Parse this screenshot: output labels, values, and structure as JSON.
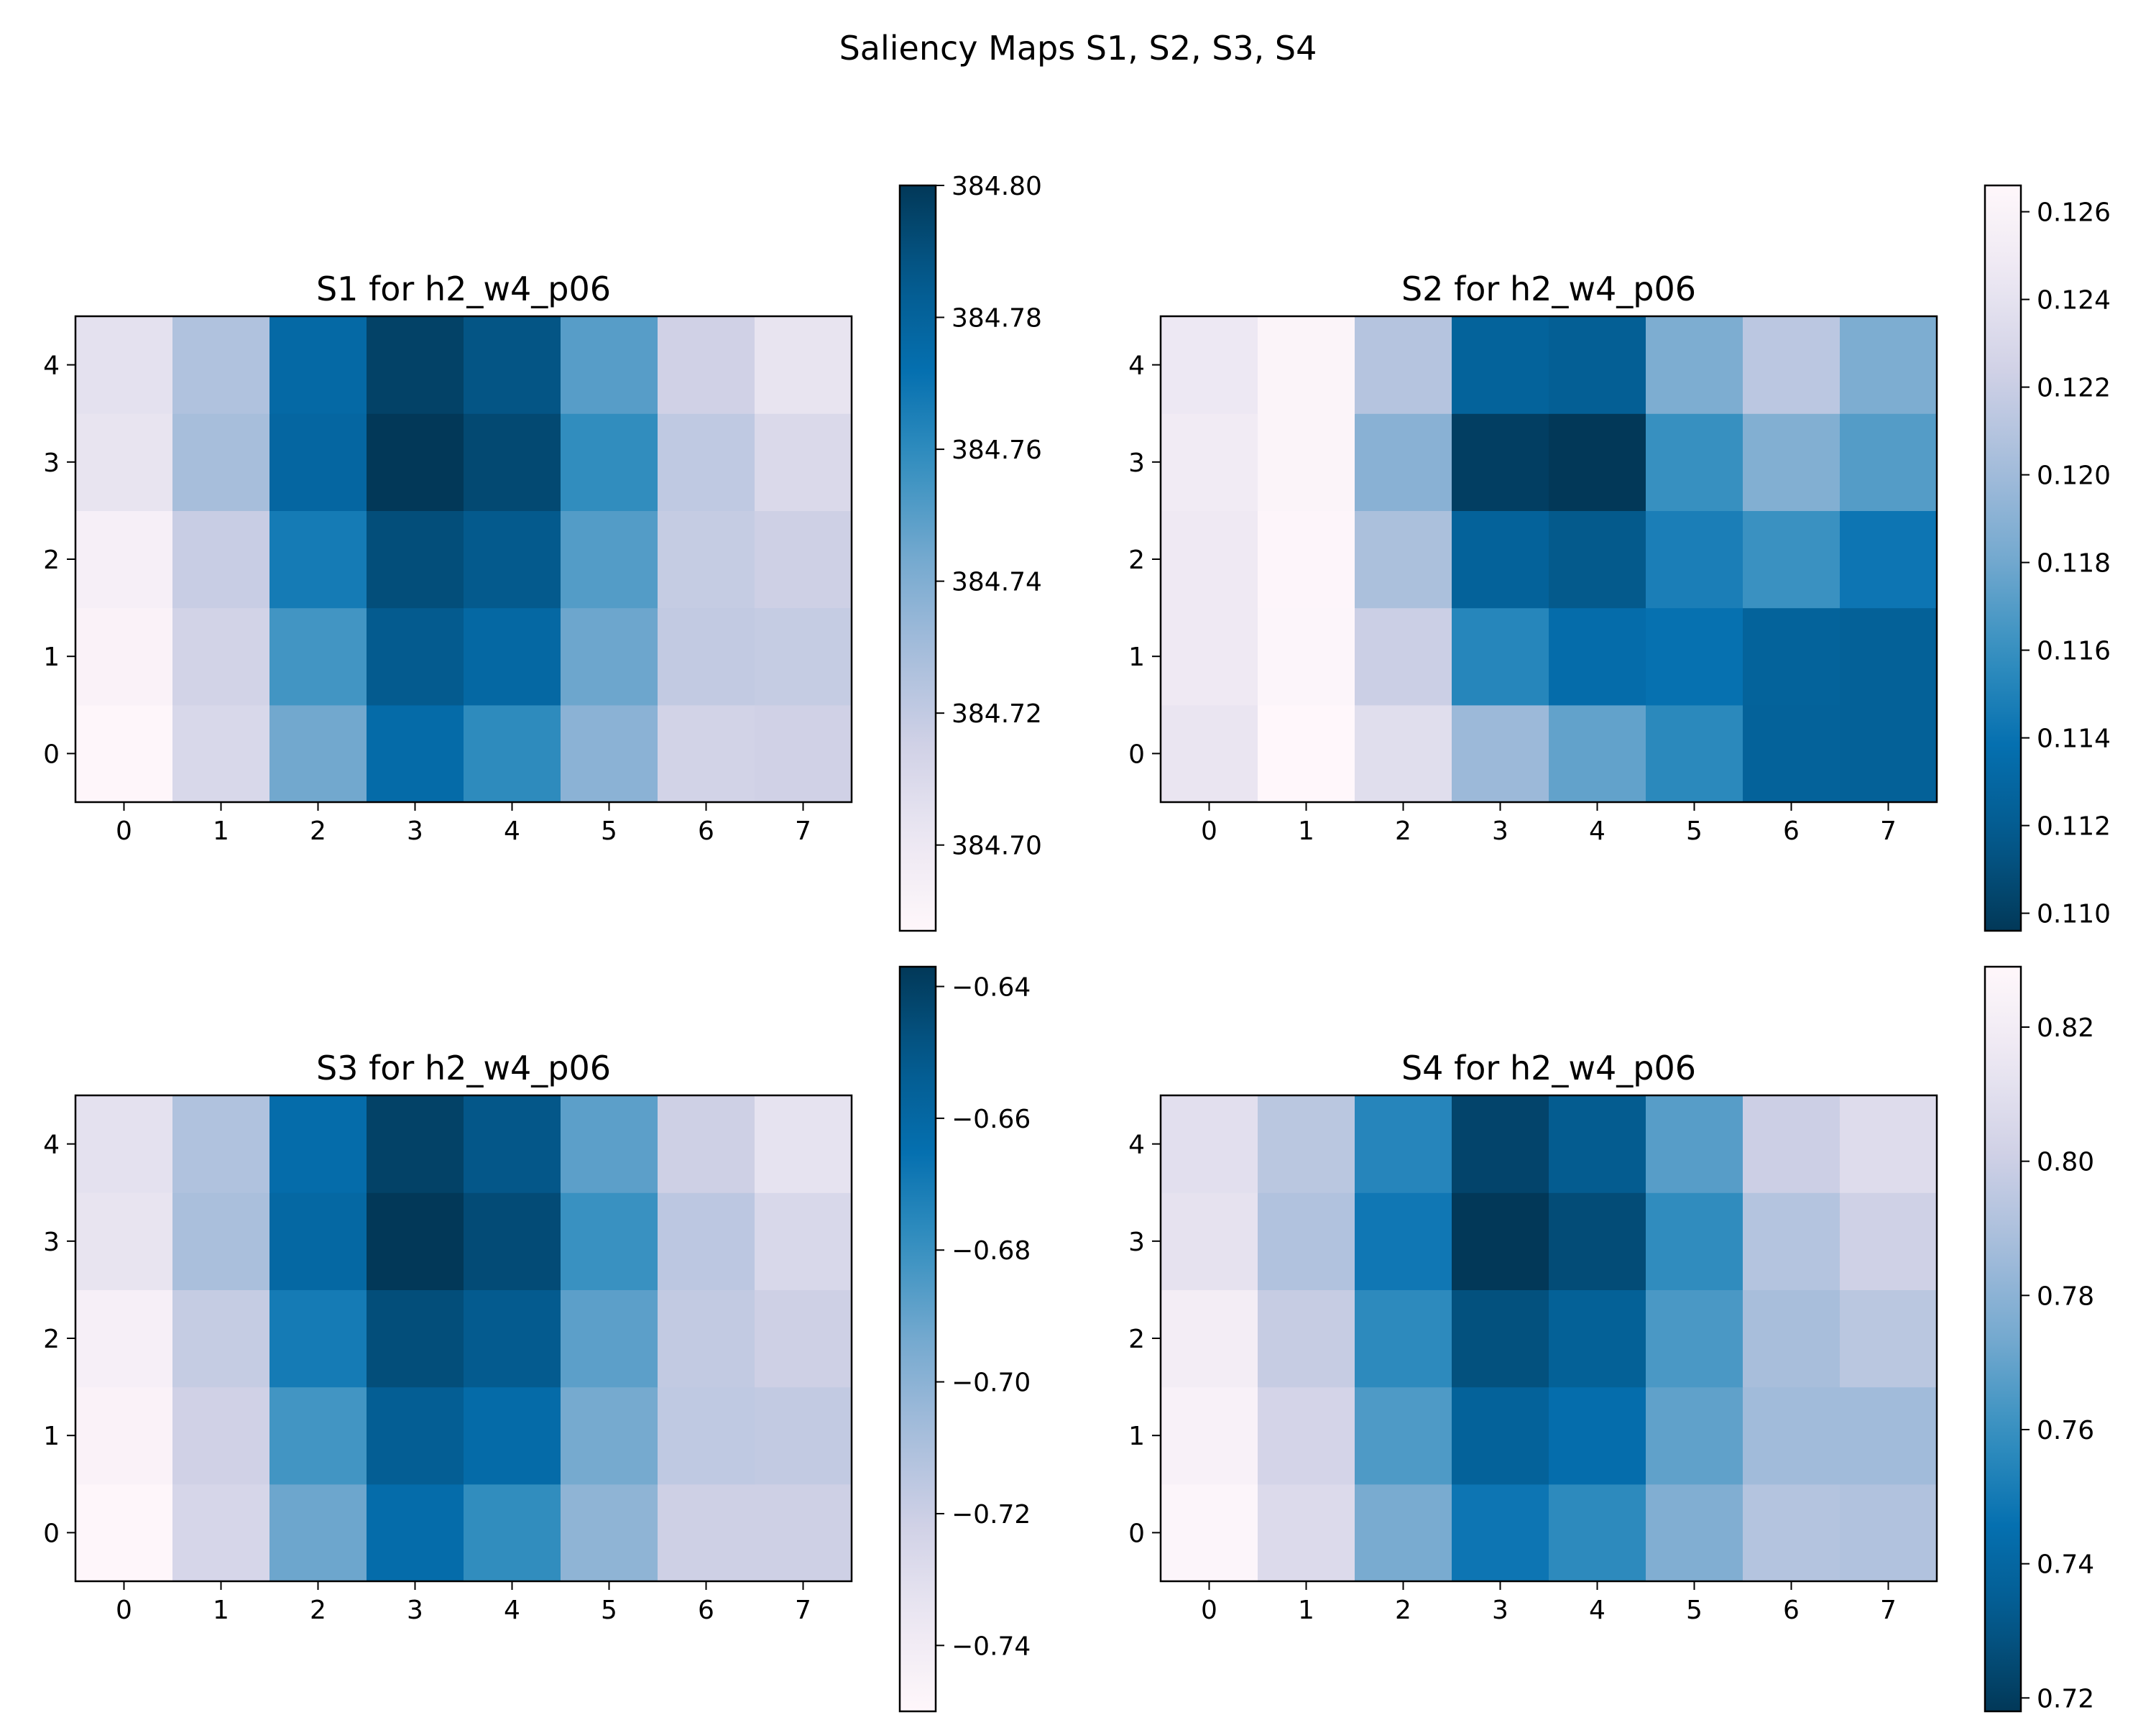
{
  "figure": {
    "suptitle": "Saliency Maps S1, S2, S3, S4"
  },
  "colormap": [
    "#fff7fb",
    "#ece7f2",
    "#d0d1e6",
    "#a6bddb",
    "#74a9cf",
    "#3690c0",
    "#0570b0",
    "#045a8d",
    "#023858"
  ],
  "chart_data": [
    {
      "type": "heatmap",
      "title": "S1 for h2_w4_p06",
      "x_ticks": [
        "0",
        "1",
        "2",
        "3",
        "4",
        "5",
        "6",
        "7"
      ],
      "y_ticks": [
        "0",
        "1",
        "2",
        "3",
        "4"
      ],
      "colorbar": {
        "vmin": 384.687,
        "vmax": 384.8,
        "reversed": false,
        "ticks": [
          "384.70",
          "384.72",
          "384.74",
          "384.76",
          "384.78",
          "384.80"
        ]
      },
      "grid": [
        [
          384.688,
          384.711,
          384.744,
          384.775,
          384.76,
          384.737,
          384.714,
          384.715
        ],
        [
          384.691,
          384.714,
          384.755,
          384.785,
          384.777,
          384.745,
          384.72,
          384.719
        ],
        [
          384.694,
          384.718,
          384.767,
          384.791,
          384.786,
          384.751,
          384.719,
          384.716
        ],
        [
          384.703,
          384.729,
          384.778,
          384.8,
          384.793,
          384.759,
          384.721,
          384.71
        ],
        [
          384.705,
          384.726,
          384.776,
          384.796,
          384.788,
          384.75,
          384.715,
          384.703
        ]
      ]
    },
    {
      "type": "heatmap",
      "title": "S2 for h2_w4_p06",
      "x_ticks": [
        "0",
        "1",
        "2",
        "3",
        "4",
        "5",
        "6",
        "7"
      ],
      "y_ticks": [
        "0",
        "1",
        "2",
        "3",
        "4"
      ],
      "colorbar": {
        "vmin": 0.1096,
        "vmax": 0.1266,
        "reversed": true,
        "ticks": [
          "0.110",
          "0.112",
          "0.114",
          "0.116",
          "0.118",
          "0.120",
          "0.122",
          "0.124",
          "0.126"
        ]
      },
      "grid": [
        [
          0.1243,
          0.1266,
          0.1236,
          0.1198,
          0.1175,
          0.1155,
          0.1125,
          0.1124
        ],
        [
          0.1248,
          0.1263,
          0.1221,
          0.1153,
          0.1135,
          0.1139,
          0.1126,
          0.1124
        ],
        [
          0.1248,
          0.1264,
          0.1205,
          0.1125,
          0.1117,
          0.1148,
          0.1161,
          0.1142
        ],
        [
          0.125,
          0.1262,
          0.119,
          0.11,
          0.1096,
          0.116,
          0.1187,
          0.117
        ],
        [
          0.1246,
          0.1262,
          0.121,
          0.1126,
          0.1122,
          0.1185,
          0.1213,
          0.1185
        ]
      ]
    },
    {
      "type": "heatmap",
      "title": "S3 for h2_w4_p06",
      "x_ticks": [
        "0",
        "1",
        "2",
        "3",
        "4",
        "5",
        "6",
        "7"
      ],
      "y_ticks": [
        "0",
        "1",
        "2",
        "3",
        "4"
      ],
      "colorbar": {
        "vmin": -0.75,
        "vmax": -0.637,
        "reversed": false,
        "ticks": [
          "−0.74",
          "−0.72",
          "−0.70",
          "−0.68",
          "−0.66",
          "−0.64"
        ]
      },
      "grid": [
        [
          -0.749,
          -0.725,
          -0.692,
          -0.663,
          -0.678,
          -0.701,
          -0.721,
          -0.721
        ],
        [
          -0.746,
          -0.722,
          -0.682,
          -0.654,
          -0.662,
          -0.694,
          -0.716,
          -0.717
        ],
        [
          -0.743,
          -0.718,
          -0.67,
          -0.646,
          -0.652,
          -0.688,
          -0.717,
          -0.721
        ],
        [
          -0.734,
          -0.709,
          -0.66,
          -0.637,
          -0.645,
          -0.68,
          -0.715,
          -0.726
        ],
        [
          -0.732,
          -0.711,
          -0.663,
          -0.641,
          -0.65,
          -0.688,
          -0.721,
          -0.733
        ]
      ]
    },
    {
      "type": "heatmap",
      "title": "S4 for h2_w4_p06",
      "x_ticks": [
        "0",
        "1",
        "2",
        "3",
        "4",
        "5",
        "6",
        "7"
      ],
      "y_ticks": [
        "0",
        "1",
        "2",
        "3",
        "4"
      ],
      "colorbar": {
        "vmin": 0.718,
        "vmax": 0.829,
        "reversed": true,
        "ticks": [
          "0.72",
          "0.74",
          "0.76",
          "0.78",
          "0.80",
          "0.82"
        ]
      },
      "grid": [
        [
          0.827,
          0.807,
          0.775,
          0.748,
          0.757,
          0.777,
          0.792,
          0.791
        ],
        [
          0.824,
          0.803,
          0.765,
          0.737,
          0.744,
          0.769,
          0.786,
          0.786
        ],
        [
          0.82,
          0.798,
          0.757,
          0.728,
          0.736,
          0.764,
          0.788,
          0.794
        ],
        [
          0.812,
          0.791,
          0.749,
          0.718,
          0.726,
          0.758,
          0.792,
          0.801
        ],
        [
          0.81,
          0.794,
          0.755,
          0.723,
          0.733,
          0.767,
          0.8,
          0.808
        ]
      ]
    }
  ]
}
